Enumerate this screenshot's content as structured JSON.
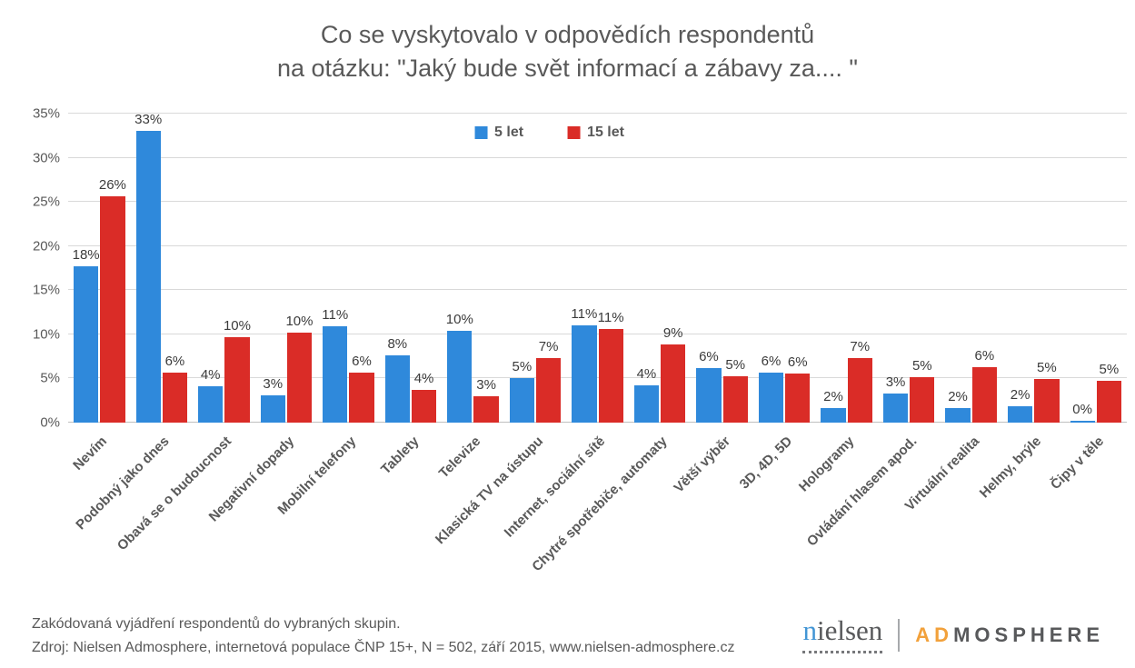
{
  "title": {
    "line1": "Co se vyskytovalo v odpovědích respondentů",
    "line2": "na otázku: \"Jaký bude svět informací a zábavy za.... \""
  },
  "legend": [
    {
      "label": "5 let",
      "color": "#2F89DB"
    },
    {
      "label": "15 let",
      "color": "#DA2C27"
    }
  ],
  "chart_data": {
    "type": "bar",
    "title": "Co se vyskytovalo v odpovědích respondentů na otázku: \"Jaký bude svět informací a zábavy za.... \"",
    "categories": [
      "Nevím",
      "Podobný jako dnes",
      "Obavá se o budoucnost",
      "Negativní dopady",
      "Mobilní telefony",
      "Tablety",
      "Televize",
      "Klasická TV na ústupu",
      "Internet, sociální sítě",
      "Chytré spotřebiče, automaty",
      "Větší výběr",
      "3D, 4D, 5D",
      "Hologramy",
      "Ovládání hlasem apod.",
      "Virtuální realita",
      "Helmy, brýle",
      "Čipy v těle"
    ],
    "series": [
      {
        "name": "5 let",
        "color": "#2F89DB",
        "values": [
          17.7,
          33,
          4.1,
          3.1,
          10.9,
          7.6,
          10.4,
          5,
          11,
          4.2,
          6.2,
          5.7,
          1.7,
          3.3,
          1.7,
          1.9,
          0.2
        ],
        "labels": [
          "18%",
          "33%",
          "4%",
          "3%",
          "11%",
          "8%",
          "10%",
          "5%",
          "11%",
          "4%",
          "6%",
          "6%",
          "2%",
          "3%",
          "2%",
          "2%",
          "0%"
        ]
      },
      {
        "name": "15 let",
        "color": "#DA2C27",
        "values": [
          25.6,
          5.7,
          9.7,
          10.2,
          5.7,
          3.7,
          3,
          7.3,
          10.6,
          8.9,
          5.3,
          5.6,
          7.3,
          5.2,
          6.3,
          4.9,
          4.7
        ],
        "labels": [
          "26%",
          "6%",
          "10%",
          "10%",
          "6%",
          "4%",
          "3%",
          "7%",
          "11%",
          "9%",
          "5%",
          "6%",
          "7%",
          "5%",
          "6%",
          "5%",
          "5%"
        ]
      }
    ],
    "xlabel": "",
    "ylabel": "",
    "ylim": [
      0,
      35
    ],
    "yticks": [
      "0%",
      "5%",
      "10%",
      "15%",
      "20%",
      "25%",
      "30%",
      "35%"
    ],
    "grid": true,
    "legend_position": "top-center"
  },
  "footer": {
    "line1": "Zakódovaná vyjádření respondentů do vybraných skupin.",
    "line2": "Zdroj: Nielsen Admosphere, internetová populace ČNP 15+, N = 502, září 2015, www.nielsen-admosphere.cz"
  },
  "brand": {
    "nielsen_accent": "n",
    "nielsen_rest": "ielsen",
    "admosphere_accent": "AD",
    "admosphere_rest": "MOSPHERE"
  }
}
